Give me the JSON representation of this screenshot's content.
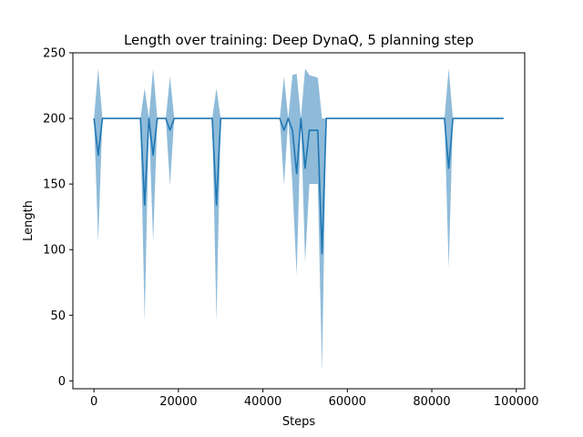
{
  "chart_data": {
    "type": "line",
    "title": "Length over training: Deep DynaQ, 5 planning step",
    "xlabel": "Steps",
    "ylabel": "Length",
    "xlim": [
      -5000,
      102000
    ],
    "ylim": [
      -6,
      250
    ],
    "xticks": [
      0,
      20000,
      40000,
      60000,
      80000,
      100000
    ],
    "xtick_labels": [
      "0",
      "20000",
      "40000",
      "60000",
      "80000",
      "100000"
    ],
    "yticks": [
      0,
      50,
      100,
      150,
      200,
      250
    ],
    "ytick_labels": [
      "0",
      "50",
      "100",
      "150",
      "200",
      "250"
    ],
    "grid": false,
    "colors": {
      "line": "#1f77b4",
      "band": "#1f77b4"
    },
    "series": [
      {
        "x": [
          0,
          1000,
          2000,
          11000,
          12000,
          13000,
          14000,
          15000,
          17000,
          18000,
          19000,
          28000,
          29000,
          30000,
          44000,
          45000,
          46000,
          47000,
          48000,
          49000,
          50000,
          51000,
          53000,
          54000,
          55000,
          83000,
          84000,
          85000,
          97000
        ],
        "y": [
          200,
          172,
          200,
          200,
          134,
          200,
          172,
          200,
          200,
          191,
          200,
          200,
          134,
          200,
          200,
          191,
          200,
          191,
          158,
          200,
          162,
          191,
          191,
          97,
          200,
          200,
          162,
          200,
          200
        ],
        "lower": [
          200,
          106,
          200,
          200,
          45,
          200,
          106,
          200,
          200,
          149,
          200,
          200,
          45,
          200,
          200,
          149,
          200,
          149,
          80,
          200,
          90,
          150,
          150,
          7,
          200,
          200,
          86,
          200,
          200
        ],
        "upper": [
          200,
          238,
          200,
          200,
          223,
          200,
          238,
          200,
          200,
          232,
          200,
          200,
          223,
          200,
          200,
          232,
          200,
          233,
          234,
          200,
          238,
          233,
          231,
          200,
          200,
          200,
          238,
          200,
          200
        ]
      }
    ]
  }
}
